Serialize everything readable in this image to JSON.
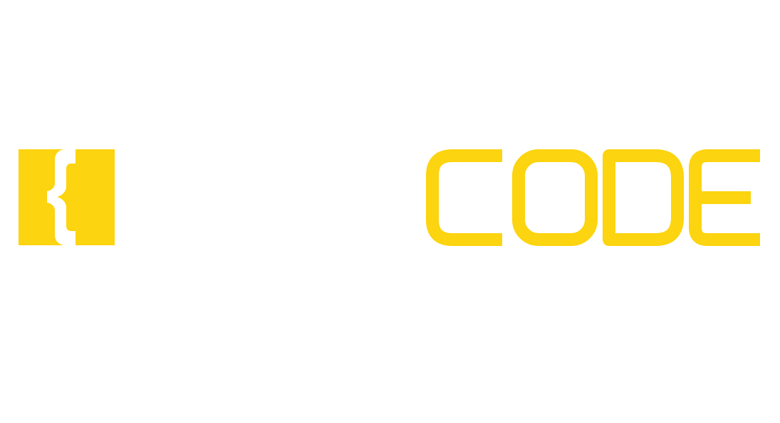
{
  "logo": {
    "wordmark": "CODE",
    "accent_color": "#FCD40F",
    "background_color": "#FFFFFF",
    "mark_icon": "curly-brace-icon"
  }
}
